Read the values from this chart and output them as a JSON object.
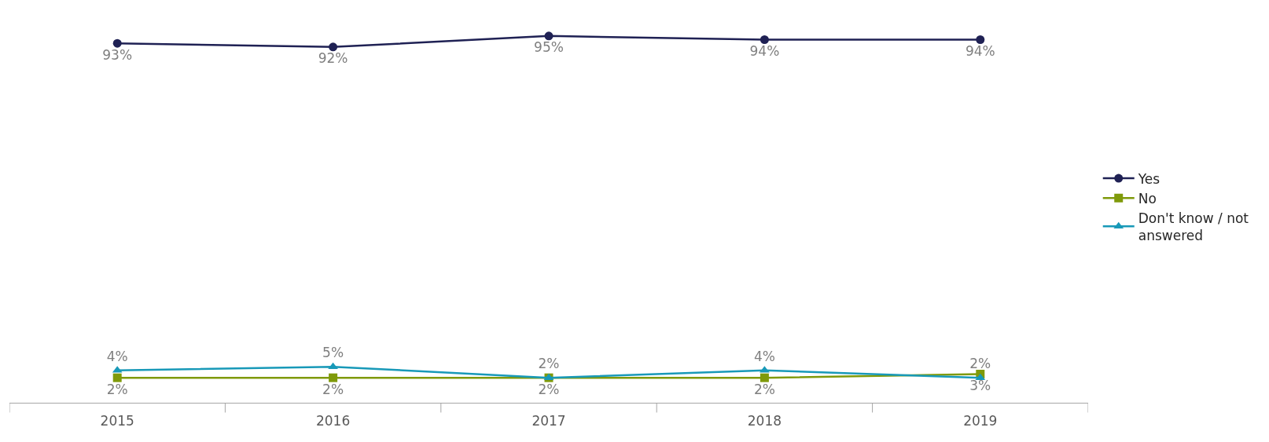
{
  "chart_data": {
    "type": "line",
    "categories": [
      "2015",
      "2016",
      "2017",
      "2018",
      "2019"
    ],
    "series": [
      {
        "name": "Yes",
        "color": "#1f2154",
        "marker": "circle",
        "values": [
          93,
          92,
          95,
          94,
          94
        ],
        "value_labels": [
          "93%",
          "92%",
          "95%",
          "94%",
          "94%"
        ]
      },
      {
        "name": "No",
        "color": "#7f9a0a",
        "marker": "square",
        "values": [
          2,
          2,
          2,
          2,
          3
        ],
        "value_labels": [
          "2%",
          "2%",
          "2%",
          "2%",
          "3%"
        ]
      },
      {
        "name": "Don't know / not answered",
        "color": "#1899b8",
        "marker": "triangle",
        "values": [
          4,
          5,
          2,
          4,
          2
        ],
        "value_labels": [
          "4%",
          "5%",
          "2%",
          "4%",
          "2%"
        ]
      }
    ],
    "legend": "right",
    "grid": false,
    "line_style": "solid"
  }
}
